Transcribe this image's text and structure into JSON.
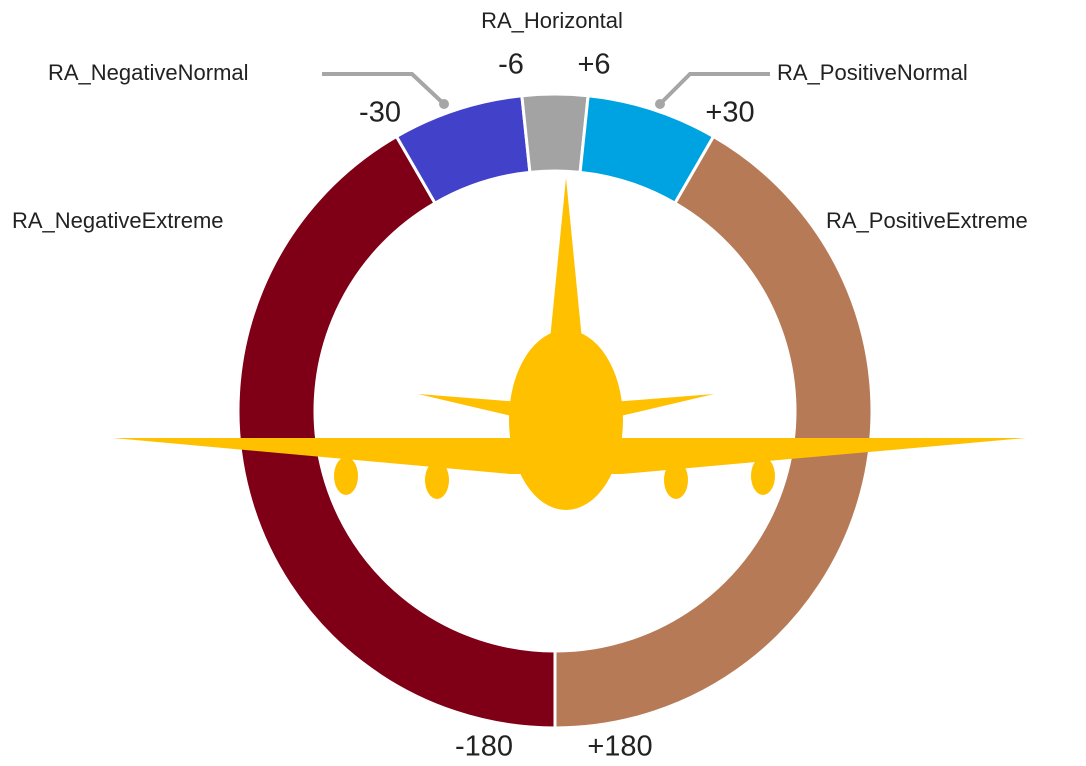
{
  "diagram": {
    "boundaries": [
      {
        "value": -180,
        "label": "-180"
      },
      {
        "value": -30,
        "label": "-30"
      },
      {
        "value": -6,
        "label": "-6"
      },
      {
        "value": 6,
        "label": "+6"
      },
      {
        "value": 30,
        "label": "+30"
      },
      {
        "value": 180,
        "label": "+180"
      }
    ],
    "segments": [
      {
        "name": "RA_NegativeExtreme",
        "color": "#7f0016"
      },
      {
        "name": "RA_NegativeNormal",
        "color": "#4141c9"
      },
      {
        "name": "RA_Horizontal",
        "color": "#a3a3a3"
      },
      {
        "name": "RA_PositiveNormal",
        "color": "#00a3e1"
      },
      {
        "name": "RA_PositiveExtreme",
        "color": "#b77a57"
      }
    ]
  }
}
